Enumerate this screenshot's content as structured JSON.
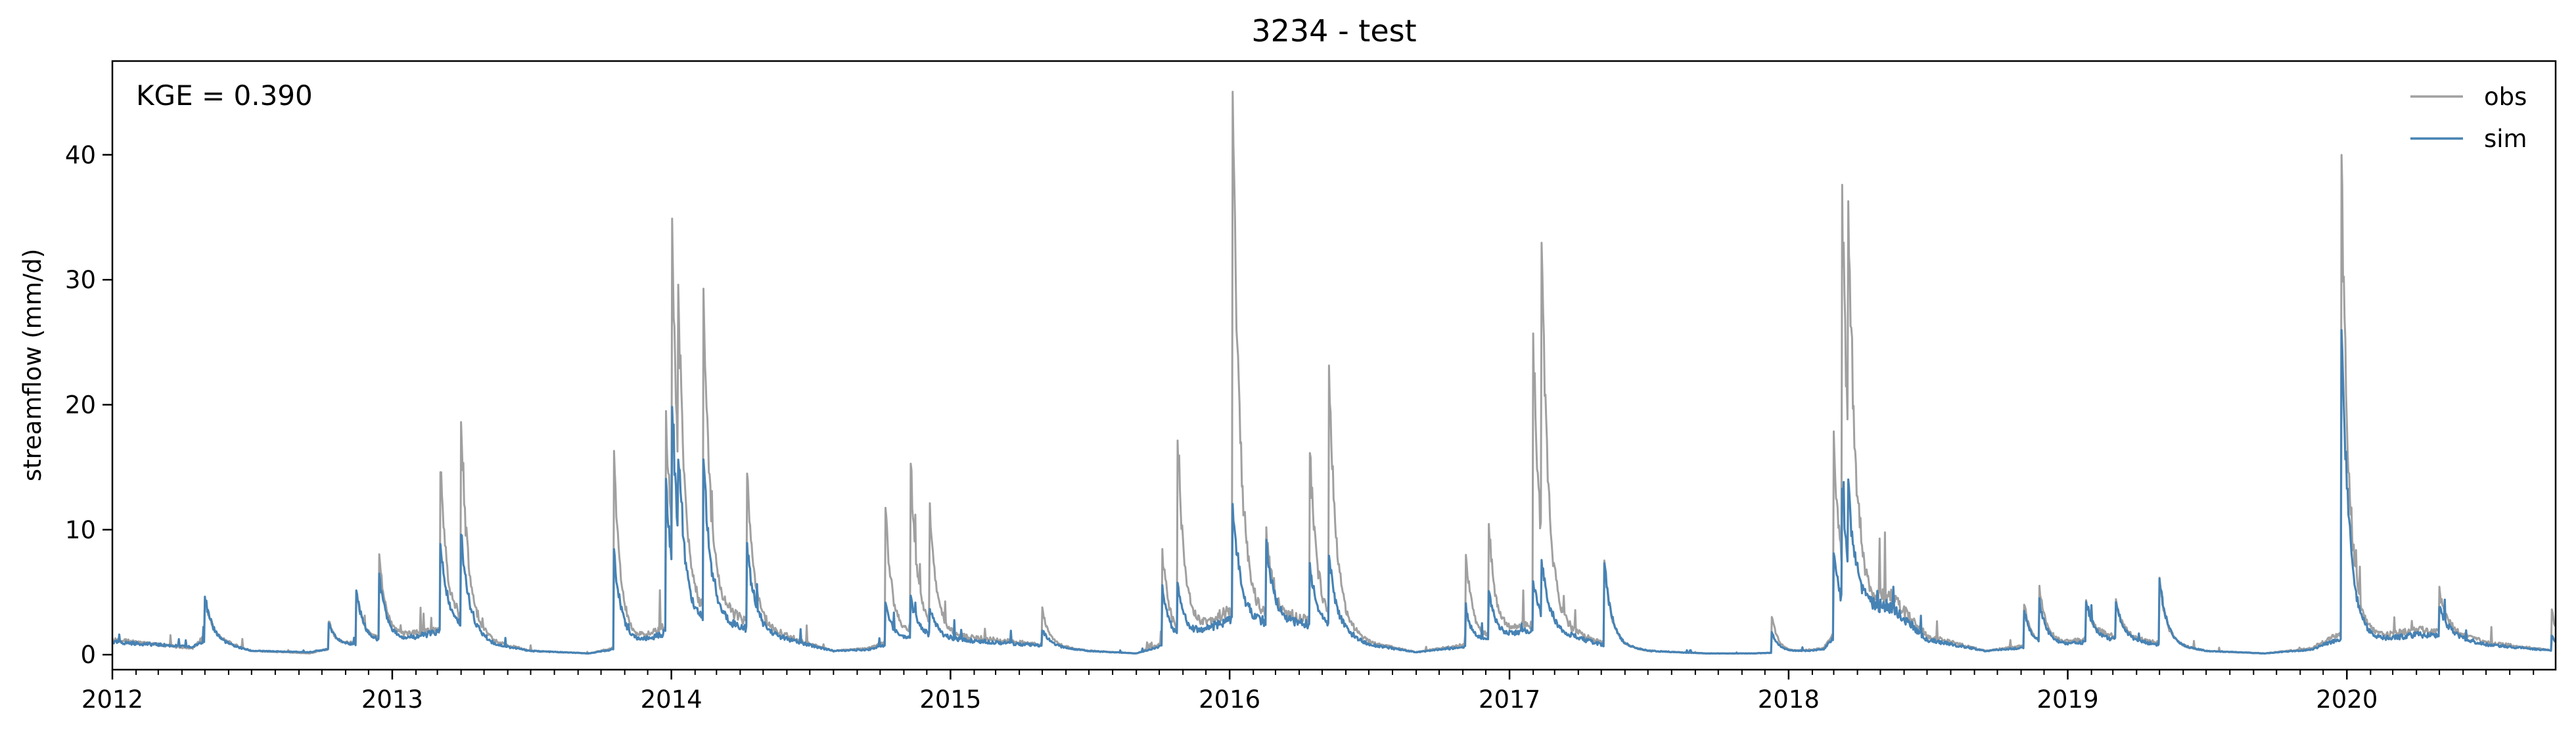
{
  "chart_data": {
    "type": "line",
    "title": "3234 - test",
    "xlabel": "",
    "ylabel": "streamflow (mm/d)",
    "annotation": "KGE = 0.390",
    "xlim": [
      "2012-01-01",
      "2020-09-30"
    ],
    "ylim": [
      -1.2,
      47.5
    ],
    "x_ticks": [
      "2012",
      "2013",
      "2014",
      "2015",
      "2016",
      "2017",
      "2018",
      "2019",
      "2020"
    ],
    "y_ticks": [
      0,
      10,
      20,
      30,
      40
    ],
    "legend": {
      "position": "top-right",
      "entries": [
        "obs",
        "sim"
      ]
    },
    "grid": false,
    "colors": {
      "obs": "#a0a0a0",
      "sim": "#4682b4"
    },
    "baseflow": {
      "x": [
        "2012-01-01",
        "2012-03-01",
        "2012-04-15",
        "2012-05-01",
        "2012-07-01",
        "2012-09-15",
        "2012-11-01",
        "2013-01-15",
        "2013-03-01",
        "2013-04-01",
        "2013-05-15",
        "2013-07-01",
        "2013-09-15",
        "2013-10-15",
        "2013-12-01",
        "2014-01-15",
        "2014-03-01",
        "2014-04-15",
        "2014-06-15",
        "2014-08-01",
        "2014-09-15",
        "2014-11-15",
        "2015-01-01",
        "2015-03-01",
        "2015-05-01",
        "2015-07-01",
        "2015-09-01",
        "2015-11-01",
        "2016-01-01",
        "2016-02-15",
        "2016-04-01",
        "2016-05-15",
        "2016-07-01",
        "2016-09-01",
        "2016-11-01",
        "2016-12-15",
        "2017-02-01",
        "2017-03-15",
        "2017-05-01",
        "2017-07-01",
        "2017-09-15",
        "2017-11-15",
        "2018-01-01",
        "2018-02-15",
        "2018-04-01",
        "2018-05-15",
        "2018-07-01",
        "2018-09-15",
        "2018-11-15",
        "2019-01-01",
        "2019-02-15",
        "2019-04-01",
        "2019-05-15",
        "2019-07-01",
        "2019-09-15",
        "2019-11-15",
        "2020-01-01",
        "2020-02-15",
        "2020-04-01",
        "2020-05-15",
        "2020-07-01",
        "2020-09-30"
      ],
      "obs": [
        1.2,
        0.8,
        0.5,
        1.5,
        0.3,
        0.1,
        0.8,
        1.5,
        2.0,
        2.5,
        1.0,
        0.3,
        0.1,
        0.5,
        1.5,
        3.0,
        3.5,
        2.5,
        1.2,
        0.3,
        0.5,
        1.8,
        1.5,
        1.2,
        0.8,
        0.3,
        0.1,
        1.5,
        3.5,
        3.0,
        3.0,
        2.5,
        1.0,
        0.2,
        0.8,
        1.5,
        2.5,
        2.0,
        1.0,
        0.3,
        0.1,
        0.1,
        0.2,
        0.5,
        4.0,
        4.5,
        1.5,
        0.3,
        0.8,
        1.0,
        1.5,
        1.2,
        0.8,
        0.3,
        0.1,
        0.5,
        2.0,
        1.5,
        2.0,
        1.8,
        1.0,
        0.3
      ],
      "sim": [
        1.0,
        0.8,
        0.6,
        1.2,
        0.3,
        0.2,
        0.7,
        1.2,
        1.8,
        2.0,
        0.8,
        0.3,
        0.1,
        0.4,
        1.2,
        2.2,
        2.5,
        2.0,
        1.0,
        0.3,
        0.4,
        1.4,
        1.2,
        1.0,
        0.7,
        0.3,
        0.1,
        1.2,
        2.8,
        2.5,
        2.5,
        2.0,
        0.8,
        0.2,
        0.6,
        1.2,
        2.0,
        1.6,
        0.8,
        0.3,
        0.1,
        0.1,
        0.2,
        0.4,
        3.5,
        3.8,
        1.2,
        0.3,
        0.6,
        0.8,
        1.2,
        1.0,
        0.7,
        0.3,
        0.1,
        0.4,
        1.5,
        1.2,
        1.6,
        1.5,
        0.8,
        0.3
      ]
    },
    "peaks": [
      {
        "date": "2012-05-01",
        "obs": 4.5,
        "sim": 4.7
      },
      {
        "date": "2012-10-10",
        "obs": 2.7,
        "sim": 2.6
      },
      {
        "date": "2012-11-15",
        "obs": 5.0,
        "sim": 5.2
      },
      {
        "date": "2012-12-15",
        "obs": 7.8,
        "sim": 6.2
      },
      {
        "date": "2013-03-05",
        "obs": 14.7,
        "sim": 8.8
      },
      {
        "date": "2013-04-01",
        "obs": 18.0,
        "sim": 9.3
      },
      {
        "date": "2013-10-18",
        "obs": 16.3,
        "sim": 8.5
      },
      {
        "date": "2013-12-25",
        "obs": 19.8,
        "sim": 14.0
      },
      {
        "date": "2014-01-02",
        "obs": 27.3,
        "sim": 14.5
      },
      {
        "date": "2014-01-10",
        "obs": 17.0,
        "sim": 8.0
      },
      {
        "date": "2014-02-12",
        "obs": 28.2,
        "sim": 15.0
      },
      {
        "date": "2014-04-10",
        "obs": 14.2,
        "sim": 8.7
      },
      {
        "date": "2014-10-08",
        "obs": 11.6,
        "sim": 4.2
      },
      {
        "date": "2014-11-10",
        "obs": 15.0,
        "sim": 4.5
      },
      {
        "date": "2014-12-05",
        "obs": 11.0,
        "sim": 3.5
      },
      {
        "date": "2015-05-01",
        "obs": 3.7,
        "sim": 2.0
      },
      {
        "date": "2015-10-05",
        "obs": 8.5,
        "sim": 5.5
      },
      {
        "date": "2015-10-25",
        "obs": 16.5,
        "sim": 5.0
      },
      {
        "date": "2016-01-05",
        "obs": 45.3,
        "sim": 12.3
      },
      {
        "date": "2016-02-18",
        "obs": 9.5,
        "sim": 9.0
      },
      {
        "date": "2016-04-15",
        "obs": 16.2,
        "sim": 7.0
      },
      {
        "date": "2016-05-10",
        "obs": 22.3,
        "sim": 7.5
      },
      {
        "date": "2016-11-05",
        "obs": 8.0,
        "sim": 3.5
      },
      {
        "date": "2016-12-05",
        "obs": 10.0,
        "sim": 5.0
      },
      {
        "date": "2017-02-01",
        "obs": 25.5,
        "sim": 5.8
      },
      {
        "date": "2017-02-12",
        "obs": 25.8,
        "sim": 6.5
      },
      {
        "date": "2017-05-05",
        "obs": 7.5,
        "sim": 7.3
      },
      {
        "date": "2017-12-10",
        "obs": 3.0,
        "sim": 1.8
      },
      {
        "date": "2018-03-01",
        "obs": 18.0,
        "sim": 8.0
      },
      {
        "date": "2018-03-12",
        "obs": 32.6,
        "sim": 11.0
      },
      {
        "date": "2018-03-20",
        "obs": 23.0,
        "sim": 9.0
      },
      {
        "date": "2018-11-05",
        "obs": 4.0,
        "sim": 3.5
      },
      {
        "date": "2018-11-25",
        "obs": 5.2,
        "sim": 4.0
      },
      {
        "date": "2019-01-25",
        "obs": 4.5,
        "sim": 4.3
      },
      {
        "date": "2019-03-05",
        "obs": 4.4,
        "sim": 4.2
      },
      {
        "date": "2019-05-01",
        "obs": 6.2,
        "sim": 6.0
      },
      {
        "date": "2019-12-25",
        "obs": 39.8,
        "sim": 25.8
      },
      {
        "date": "2020-05-01",
        "obs": 5.3,
        "sim": 4.0
      },
      {
        "date": "2020-09-25",
        "obs": 3.6,
        "sim": 1.5
      }
    ]
  }
}
